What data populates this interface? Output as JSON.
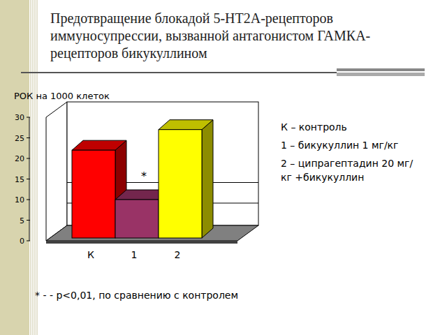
{
  "chart_data": {
    "type": "bar",
    "title": "Предотвращение блокадой 5-HT2A-рецепторов иммуносупрессии, вызванной антагонистом ГАМКA-рецепторов бикукуллином",
    "y_label": "РОК на 1000 клеток",
    "categories": [
      "К",
      "1",
      "2"
    ],
    "values": [
      22,
      10,
      27
    ],
    "colors": [
      "#ff0000",
      "#993366",
      "#ffff00"
    ],
    "ylim": [
      0,
      30
    ],
    "yticks": [
      0,
      5,
      10,
      15,
      20,
      25,
      30
    ],
    "grid": true,
    "category_notes": [
      "К – контроль",
      "1 – бикукуллин 1 мг/кг",
      "2 – ципрагептадин 20 мг/кг +бикукуллин"
    ],
    "annotations": [
      {
        "text": "*",
        "category": 1
      }
    ],
    "footnote": "* - - p<0,01, по сравнению с контролем"
  }
}
